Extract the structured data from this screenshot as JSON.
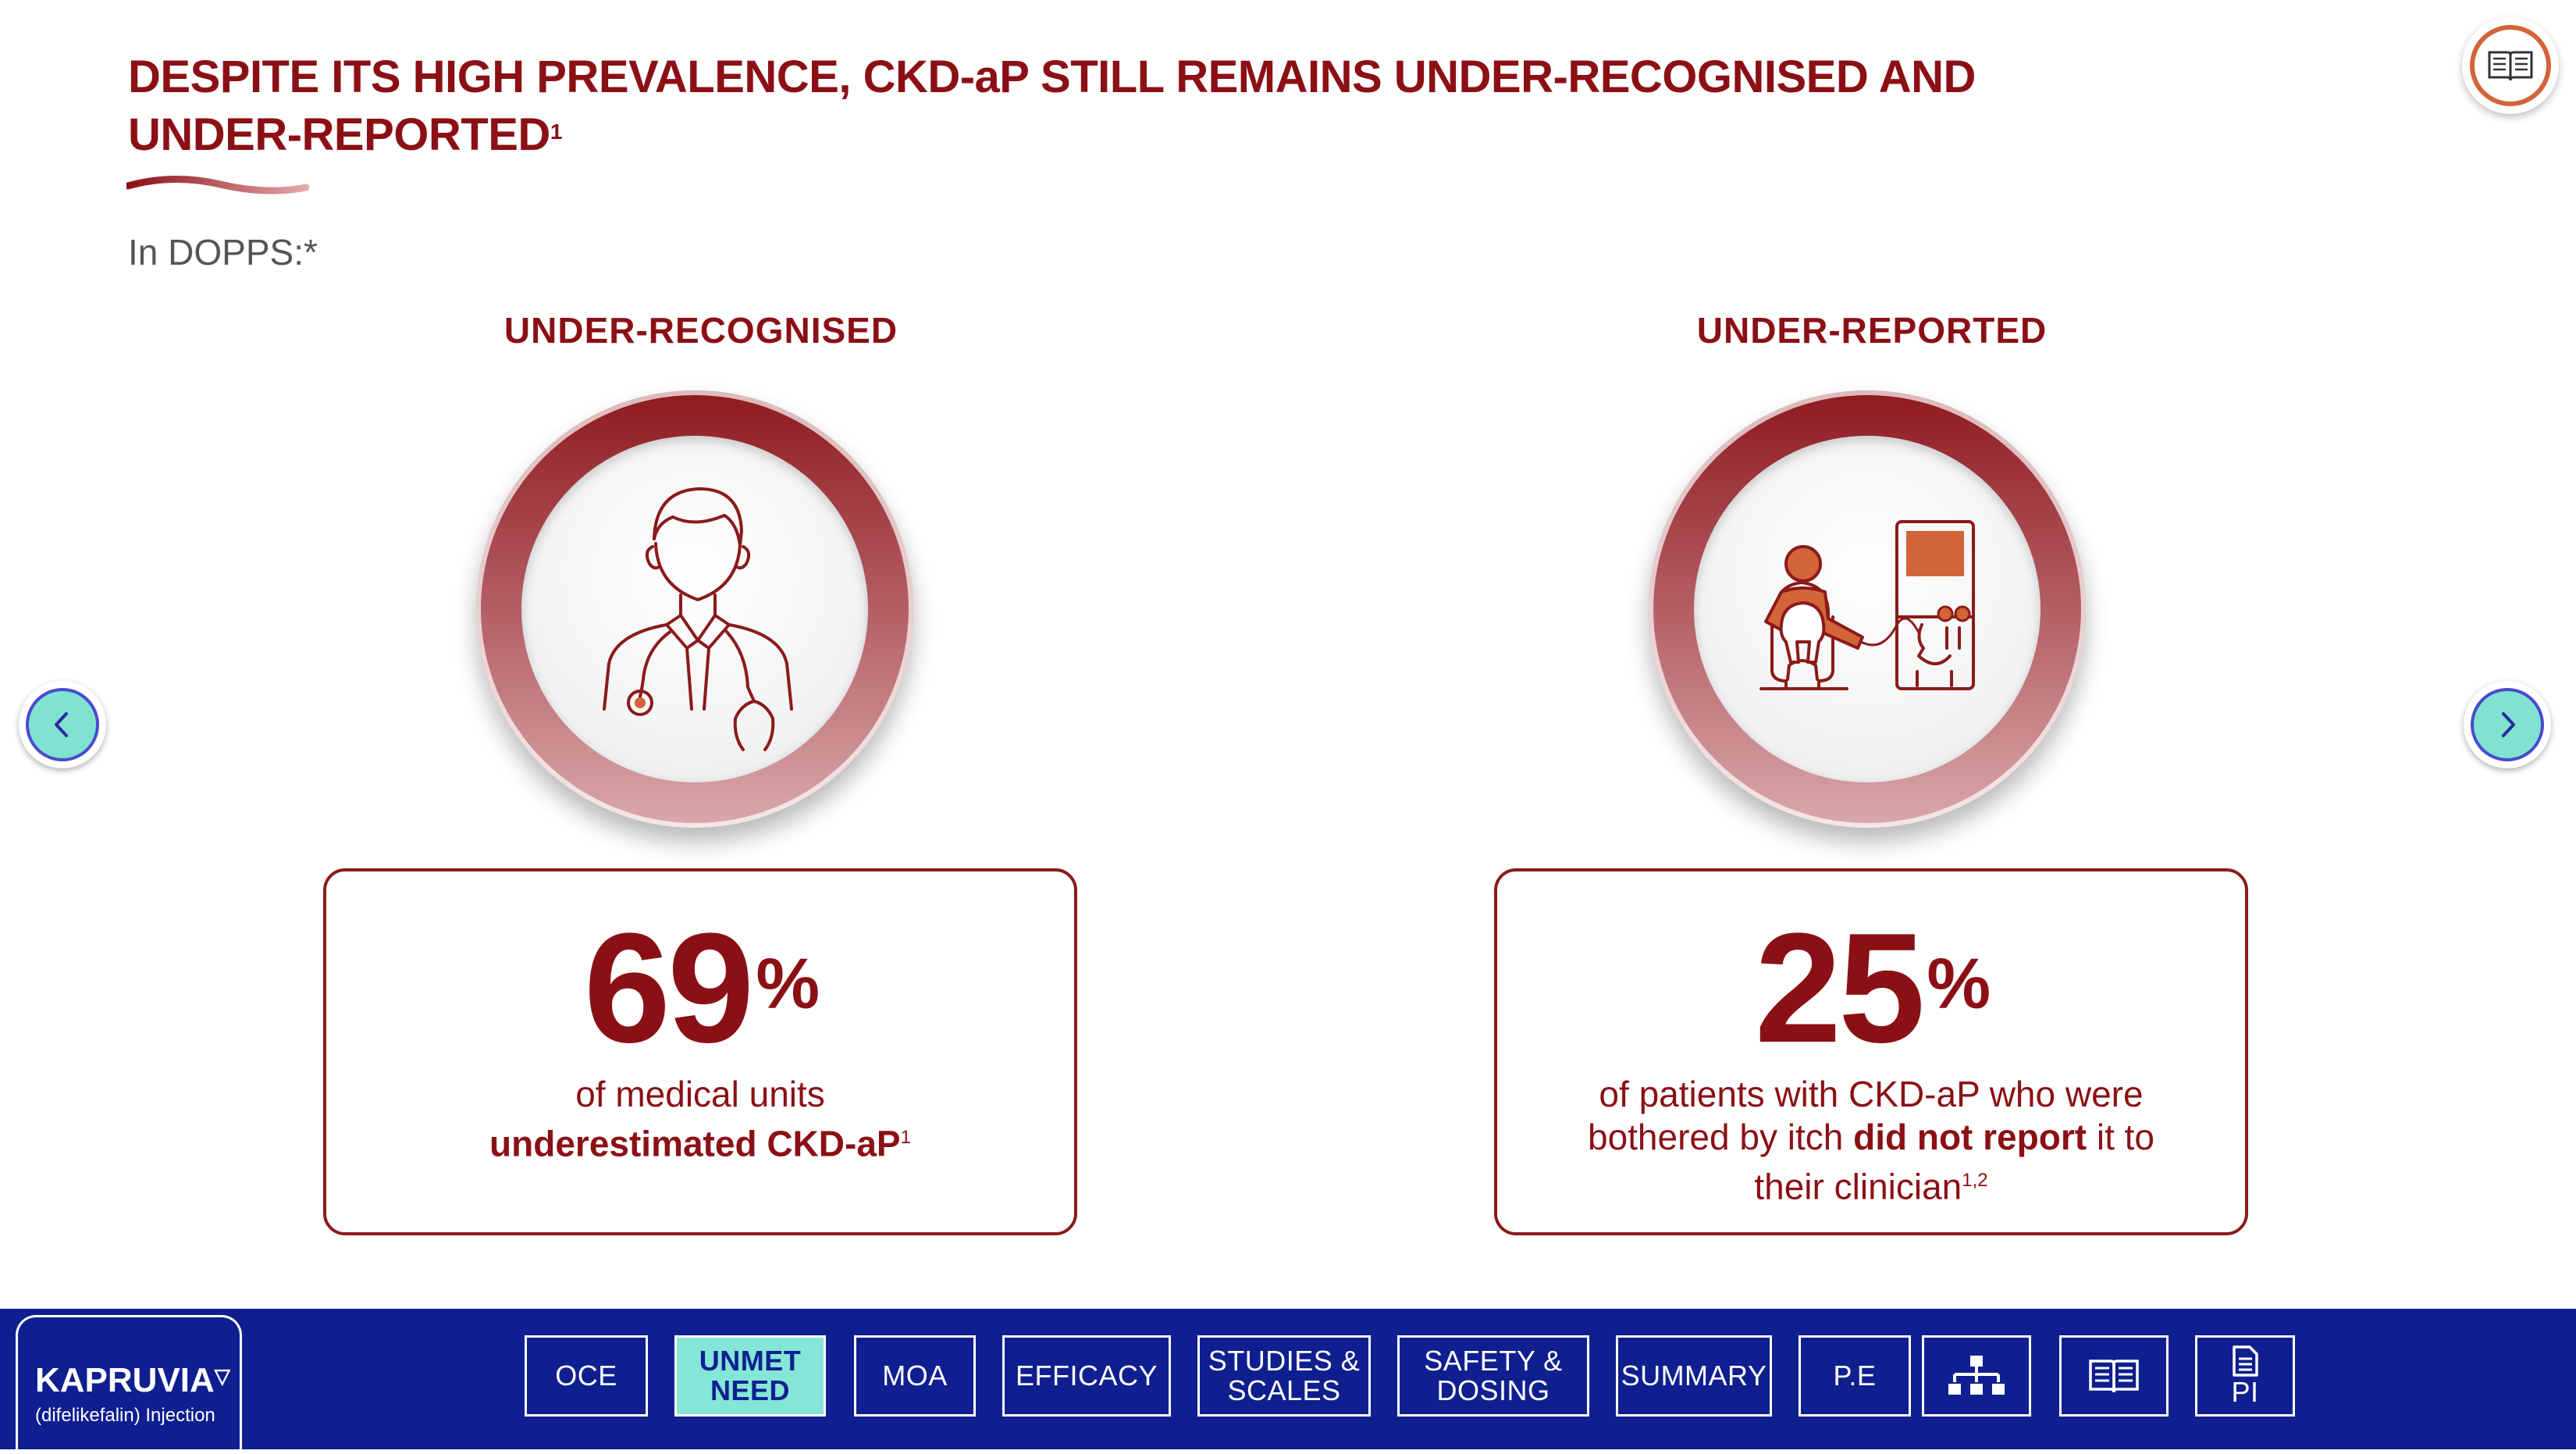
{
  "header": {
    "title_line1": "DESPITE ITS HIGH PREVALENCE, CKD-aP STILL REMAINS UNDER-RECOGNISED AND",
    "title_line2": "UNDER-REPORTED",
    "title_ref": "1",
    "subtitle": "In DOPPS:*"
  },
  "left": {
    "heading": "UNDER-RECOGNISED",
    "icon": "doctor-icon",
    "value": "69",
    "unit": "%",
    "desc_line1": "of medical units",
    "desc_bold": "underestimated CKD-aP",
    "desc_ref": "1"
  },
  "right": {
    "heading": "UNDER-REPORTED",
    "icon": "dialysis-patient-icon",
    "value": "25",
    "unit": "%",
    "desc_line1": "of patients with CKD-aP who were",
    "desc_pre": "bothered by itch ",
    "desc_bold": "did not report",
    "desc_post": " it to",
    "desc_line3": "their clinician",
    "desc_ref": "1,2"
  },
  "footer": {
    "brand": "KAPRUVIA",
    "brand_mark": "▽",
    "generic": "(difelikefalin) Injection",
    "tabs": [
      {
        "label": "OCE"
      },
      {
        "label_line1": "UNMET",
        "label_line2": "NEED"
      },
      {
        "label": "MOA"
      },
      {
        "label": "EFFICACY"
      },
      {
        "label_line1": "STUDIES &",
        "label_line2": "SCALES"
      },
      {
        "label_line1": "SAFETY &",
        "label_line2": "DOSING"
      },
      {
        "label": "SUMMARY"
      },
      {
        "label": "P.E"
      },
      {
        "label": "sitemap-icon"
      },
      {
        "label": "references-book-icon"
      },
      {
        "label": "PI"
      }
    ]
  },
  "colors": {
    "primary": "#8b1015",
    "nav_bg": "#0f1f8f",
    "active_tab": "#83e6d6",
    "icon_accent": "#d2643a"
  }
}
